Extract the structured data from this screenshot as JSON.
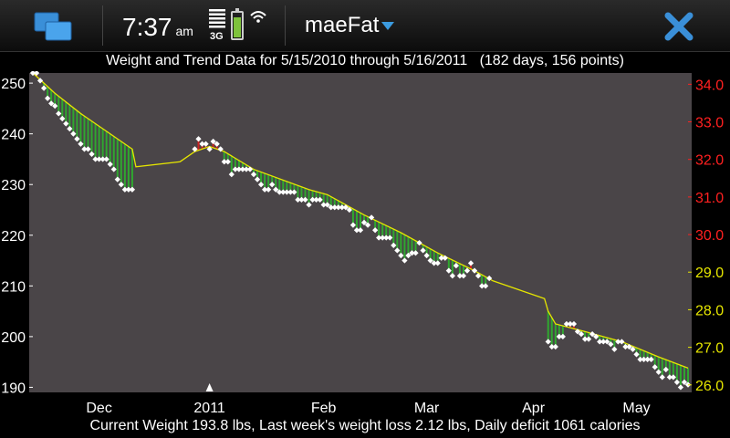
{
  "status": {
    "time": "7:37",
    "ampm": "am",
    "network": "3G"
  },
  "app": {
    "title": "maeFat"
  },
  "icons": {
    "window": "window-switcher-icon",
    "close": "close-icon",
    "signal": "signal-bars-icon",
    "battery": "battery-icon",
    "wifi": "wifi-icon",
    "dropdown": "dropdown-arrow-icon"
  },
  "chart_data": {
    "type": "line",
    "title": "Weight and Trend Data for 5/15/2010 through 5/16/2011   (182 days, 156 points)",
    "footer": "Current Weight 193.8 lbs, Last week's weight loss 2.12 lbs, Daily deficit 1061 calories",
    "x_labels": [
      "Dec",
      "2011",
      "Feb",
      "Mar",
      "Apr",
      "May"
    ],
    "ylim_left": [
      189,
      252
    ],
    "y_ticks_left": [
      "190",
      "200",
      "210",
      "220",
      "230",
      "240",
      "250"
    ],
    "y_ticks_right": [
      "26.0",
      "27.0",
      "28.0",
      "29.0",
      "30.0",
      "31.0",
      "32.0",
      "33.0",
      "34.0"
    ],
    "y_ticks_right_red": [
      "30.0",
      "31.0",
      "32.0",
      "33.0",
      "34.0"
    ],
    "ylim_right": [
      25.8,
      34.3
    ],
    "grid": false,
    "colors": {
      "plot_bg": "#4a4548",
      "trend": "#e6e600",
      "below_fill": "#2fa82f",
      "above_fill": "#cc2222",
      "points": "#ffffff",
      "right_axis_low": "#e6e600",
      "right_axis_high": "#ff2020"
    },
    "series": [
      {
        "values": [
          [
            0,
            252
          ],
          [
            1,
            252
          ],
          [
            2,
            250.5
          ],
          [
            3,
            249
          ],
          [
            4,
            247
          ],
          [
            5,
            246
          ],
          [
            6,
            245.5
          ],
          [
            7,
            244
          ],
          [
            8,
            243
          ],
          [
            9,
            242
          ],
          [
            10,
            241
          ],
          [
            11,
            240
          ],
          [
            12,
            239
          ],
          [
            13,
            238
          ],
          [
            14,
            237
          ],
          [
            15,
            237
          ],
          [
            16,
            236
          ],
          [
            17,
            235
          ],
          [
            18,
            235
          ],
          [
            19,
            235
          ],
          [
            20,
            235
          ],
          [
            21,
            234
          ],
          [
            22,
            233
          ],
          [
            23,
            231
          ],
          [
            24,
            230
          ],
          [
            25,
            229
          ],
          [
            26,
            229
          ],
          [
            27,
            229
          ],
          [
            44,
            237
          ],
          [
            45,
            239
          ],
          [
            46,
            238
          ],
          [
            47,
            238
          ],
          [
            48,
            237
          ],
          [
            49,
            238.5
          ],
          [
            50,
            238
          ],
          [
            51,
            237
          ],
          [
            52,
            234.5
          ],
          [
            53,
            234.5
          ],
          [
            54,
            232
          ],
          [
            55,
            233
          ],
          [
            56,
            233
          ],
          [
            57,
            233
          ],
          [
            58,
            233
          ],
          [
            59,
            233
          ],
          [
            60,
            232
          ],
          [
            61,
            231
          ],
          [
            62,
            230
          ],
          [
            63,
            229
          ],
          [
            64,
            229
          ],
          [
            65,
            230
          ],
          [
            66,
            229
          ],
          [
            67,
            228.5
          ],
          [
            68,
            228.5
          ],
          [
            69,
            228.5
          ],
          [
            70,
            228.5
          ],
          [
            71,
            228.5
          ],
          [
            72,
            227
          ],
          [
            73,
            227
          ],
          [
            74,
            227
          ],
          [
            75,
            226
          ],
          [
            76,
            227
          ],
          [
            77,
            227
          ],
          [
            78,
            227
          ],
          [
            79,
            226
          ],
          [
            80,
            226
          ],
          [
            81,
            225.5
          ],
          [
            82,
            225.5
          ],
          [
            83,
            225.5
          ],
          [
            84,
            225.5
          ],
          [
            85,
            225.5
          ],
          [
            86,
            225
          ],
          [
            87,
            222
          ],
          [
            88,
            221
          ],
          [
            89,
            221
          ],
          [
            90,
            222.5
          ],
          [
            91,
            222
          ],
          [
            92,
            223.5
          ],
          [
            93,
            221
          ],
          [
            94,
            219.5
          ],
          [
            95,
            219.5
          ],
          [
            96,
            219.5
          ],
          [
            97,
            219.5
          ],
          [
            98,
            218
          ],
          [
            99,
            217
          ],
          [
            100,
            216
          ],
          [
            101,
            215
          ],
          [
            102,
            216
          ],
          [
            103,
            216.5
          ],
          [
            104,
            216.5
          ],
          [
            105,
            218.5
          ],
          [
            106,
            217
          ],
          [
            107,
            216
          ],
          [
            108,
            215
          ],
          [
            109,
            214.5
          ],
          [
            110,
            214.5
          ],
          [
            111,
            215.5
          ],
          [
            112,
            215.5
          ],
          [
            113,
            213
          ],
          [
            114,
            212
          ],
          [
            115,
            214
          ],
          [
            116,
            212
          ],
          [
            117,
            212
          ],
          [
            118,
            213
          ],
          [
            119,
            214.5
          ],
          [
            120,
            213
          ],
          [
            121,
            212
          ],
          [
            122,
            210
          ],
          [
            123,
            210
          ],
          [
            124,
            211.5
          ],
          [
            140,
            199
          ],
          [
            141,
            198
          ],
          [
            142,
            198
          ],
          [
            143,
            200
          ],
          [
            144,
            200
          ],
          [
            145,
            202.5
          ],
          [
            146,
            202.5
          ],
          [
            147,
            202.5
          ],
          [
            148,
            201
          ],
          [
            149,
            200.5
          ],
          [
            150,
            199.5
          ],
          [
            151,
            199.5
          ],
          [
            152,
            200.5
          ],
          [
            153,
            200
          ],
          [
            154,
            199
          ],
          [
            155,
            199
          ],
          [
            156,
            199
          ],
          [
            157,
            198.5
          ],
          [
            158,
            197.5
          ],
          [
            159,
            199
          ],
          [
            160,
            199
          ],
          [
            161,
            198
          ],
          [
            162,
            198
          ],
          [
            163,
            197.5
          ],
          [
            164,
            196.5
          ],
          [
            165,
            195.5
          ],
          [
            166,
            195.5
          ],
          [
            167,
            195.5
          ],
          [
            168,
            195.5
          ],
          [
            169,
            194
          ],
          [
            170,
            193
          ],
          [
            171,
            192
          ],
          [
            172,
            193.5
          ],
          [
            173,
            192
          ],
          [
            174,
            192
          ],
          [
            175,
            191
          ],
          [
            176,
            190
          ],
          [
            177,
            191
          ],
          [
            178,
            190.5
          ]
        ]
      },
      {
        "values": [
          [
            0,
            252
          ],
          [
            6,
            248
          ],
          [
            13,
            244
          ],
          [
            20,
            240.5
          ],
          [
            27,
            237
          ],
          [
            28,
            233.5
          ],
          [
            40,
            234.5
          ],
          [
            44,
            236.5
          ],
          [
            48,
            237.5
          ],
          [
            50,
            237
          ],
          [
            52,
            236.5
          ],
          [
            60,
            233
          ],
          [
            75,
            229
          ],
          [
            80,
            228
          ],
          [
            90,
            224
          ],
          [
            100,
            220.5
          ],
          [
            110,
            216.5
          ],
          [
            120,
            213
          ],
          [
            125,
            211
          ],
          [
            139,
            207.5
          ],
          [
            140,
            205
          ],
          [
            142,
            202.5
          ],
          [
            150,
            201
          ],
          [
            160,
            199
          ],
          [
            170,
            196
          ],
          [
            178,
            193.8
          ]
        ]
      }
    ]
  }
}
